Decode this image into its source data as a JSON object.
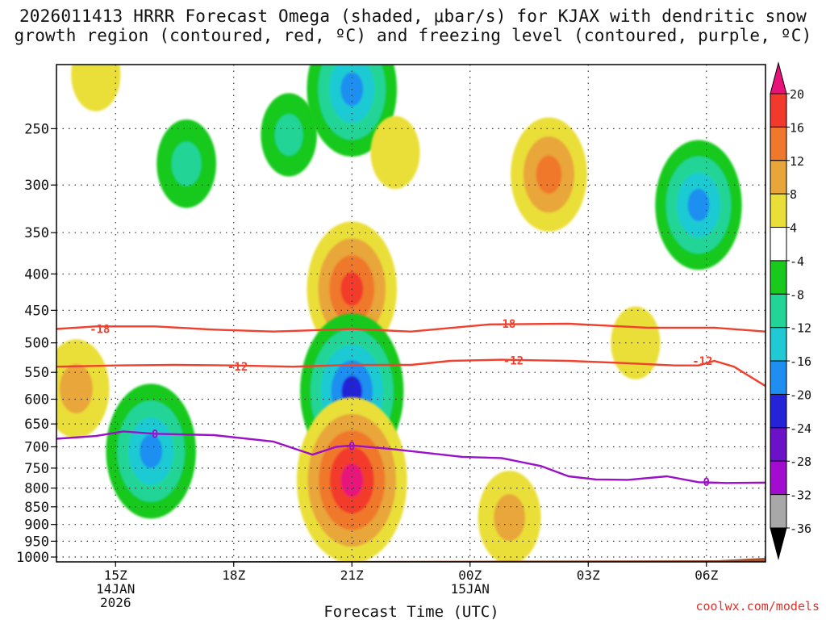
{
  "title": {
    "line1": "2026011413 HRRR Forecast Omega (shaded, μbar/s) for KJAX with dendritic snow",
    "line2": "growth region (contoured, red, ºC) and freezing level (contoured, purple, ºC)"
  },
  "credit": "coolwx.com/models",
  "chart_data": {
    "type": "contour",
    "title": "2026011413 HRRR Forecast Omega (shaded, μbar/s) for KJAX with dendritic snow growth region (contoured, red, ºC) and freezing level (contoured, purple, ºC)",
    "xlabel": "Forecast Time (UTC)",
    "ylabel": "",
    "xlim": [
      13.5,
      31.5
    ],
    "ylim": [
      1000,
      200
    ],
    "y_scale": "log-pressure (reversed)",
    "x_ticks": [
      {
        "h": 15,
        "labels": [
          "15Z",
          "14JAN",
          "2026"
        ]
      },
      {
        "h": 18,
        "labels": [
          "18Z"
        ]
      },
      {
        "h": 21,
        "labels": [
          "21Z"
        ]
      },
      {
        "h": 24,
        "labels": [
          "00Z",
          "15JAN"
        ]
      },
      {
        "h": 27,
        "labels": [
          "03Z"
        ]
      },
      {
        "h": 30,
        "labels": [
          "06Z"
        ]
      }
    ],
    "y_ticks": [
      250,
      300,
      350,
      400,
      450,
      500,
      550,
      600,
      650,
      700,
      750,
      800,
      850,
      900,
      950,
      1000
    ],
    "grid": true,
    "colorbar": {
      "labels": [
        "20",
        "16",
        "12",
        "8",
        "4",
        "-4",
        "-8",
        "-12",
        "-16",
        "-20",
        "-24",
        "-28",
        "-32",
        "-36"
      ],
      "label_values": [
        20,
        16,
        12,
        8,
        4,
        -4,
        -8,
        -12,
        -16,
        -20,
        -24,
        -28,
        -32,
        -36
      ],
      "bins": [
        {
          "range": "> 20",
          "color": "#e8127a"
        },
        {
          "range": "16 to 20",
          "color": "#f23a2c"
        },
        {
          "range": "12 to 16",
          "color": "#f0782c"
        },
        {
          "range": "8 to 12",
          "color": "#e8a63a"
        },
        {
          "range": "4 to 8",
          "color": "#eadf38"
        },
        {
          "range": "-4 to 4",
          "color": "#ffffff"
        },
        {
          "range": "-8 to -4",
          "color": "#19c91b"
        },
        {
          "range": "-12 to -8",
          "color": "#22d596"
        },
        {
          "range": "-16 to -12",
          "color": "#1fcad4"
        },
        {
          "range": "-20 to -16",
          "color": "#1e8ff0"
        },
        {
          "range": "-24 to -20",
          "color": "#2323d8"
        },
        {
          "range": "-28 to -24",
          "color": "#6b12c8"
        },
        {
          "range": "-32 to -28",
          "color": "#a20bd0"
        },
        {
          "range": "-36 to -32",
          "color": "#a8a8a8"
        },
        {
          "range": "< -36",
          "color": "#000000"
        }
      ]
    },
    "omega_features": [
      {
        "sign": "positive",
        "name": "upper-left",
        "center_h": 14.5,
        "center_p": 210,
        "peak": 6
      },
      {
        "sign": "negative",
        "name": "upper-green-column",
        "center_h": 16.8,
        "center_p": 280,
        "peak": -9
      },
      {
        "sign": "negative",
        "name": "upper-mid-blob",
        "center_h": 19.4,
        "center_p": 255,
        "peak": -8
      },
      {
        "sign": "negative",
        "name": "upper-cyan-column",
        "center_h": 21.0,
        "center_p": 220,
        "peak": -18
      },
      {
        "sign": "positive",
        "name": "upper-yellow-strip",
        "center_h": 22.1,
        "center_p": 270,
        "peak": 6
      },
      {
        "sign": "positive",
        "name": "mid-upper-warm",
        "center_h": 21.0,
        "center_p": 420,
        "peak": 18
      },
      {
        "sign": "negative",
        "name": "mid-cyan",
        "center_h": 21.0,
        "center_p": 585,
        "peak": -22
      },
      {
        "sign": "positive",
        "name": "low-core",
        "center_h": 21.0,
        "center_p": 780,
        "peak": 24
      },
      {
        "sign": "negative",
        "name": "lower-left-cell",
        "center_h": 15.9,
        "center_p": 710,
        "peak": -18
      },
      {
        "sign": "positive",
        "name": "left-column",
        "center_h": 14.0,
        "center_p": 580,
        "peak": 11
      },
      {
        "sign": "positive",
        "name": "upper-right-column",
        "center_h": 26.0,
        "center_p": 290,
        "peak": 14
      },
      {
        "sign": "positive",
        "name": "lower-right-broad",
        "center_h": 25.0,
        "center_p": 880,
        "peak": 10
      },
      {
        "sign": "negative",
        "name": "far-right-column",
        "center_h": 29.8,
        "center_p": 320,
        "peak": -17
      },
      {
        "sign": "positive",
        "name": "far-right-yellow",
        "center_h": 28.2,
        "center_p": 500,
        "peak": 6
      }
    ],
    "contours": [
      {
        "label": "-18",
        "color": "red",
        "quantity": "temperature",
        "points": [
          [
            13.5,
            478
          ],
          [
            14.5,
            474
          ],
          [
            16,
            474
          ],
          [
            17.5,
            479
          ],
          [
            19,
            482
          ],
          [
            21,
            478
          ],
          [
            22.5,
            482
          ],
          [
            24.5,
            471
          ],
          [
            26.5,
            470
          ],
          [
            28.5,
            476
          ],
          [
            30.2,
            476
          ],
          [
            31.5,
            482
          ]
        ],
        "label_positions": [
          [
            14.6,
            478
          ],
          [
            24.9,
            470
          ]
        ]
      },
      {
        "label": "-12",
        "color": "red",
        "quantity": "temperature",
        "points": [
          [
            13.5,
            540
          ],
          [
            15,
            538
          ],
          [
            16.5,
            537
          ],
          [
            18,
            538
          ],
          [
            19.5,
            540
          ],
          [
            21,
            537
          ],
          [
            22.5,
            537
          ],
          [
            23.5,
            530
          ],
          [
            24.8,
            528
          ],
          [
            26.5,
            530
          ],
          [
            28,
            534
          ],
          [
            29.2,
            538
          ],
          [
            29.8,
            538
          ],
          [
            30.2,
            530
          ],
          [
            30.7,
            540
          ],
          [
            31.5,
            575
          ]
        ],
        "label_positions": [
          [
            18.1,
            540
          ],
          [
            25.1,
            529
          ],
          [
            29.9,
            530
          ]
        ]
      },
      {
        "label": "0",
        "color": "purple",
        "quantity": "temperature (freezing level)",
        "points": [
          [
            13.5,
            682
          ],
          [
            14.5,
            676
          ],
          [
            15.2,
            666
          ],
          [
            16,
            671
          ],
          [
            17.5,
            674
          ],
          [
            19,
            688
          ],
          [
            20,
            718
          ],
          [
            20.6,
            700
          ],
          [
            21,
            697
          ],
          [
            22,
            705
          ],
          [
            23.8,
            723
          ],
          [
            24.8,
            726
          ],
          [
            25.8,
            745
          ],
          [
            26.5,
            770
          ],
          [
            27.2,
            778
          ],
          [
            28,
            779
          ],
          [
            29,
            770
          ],
          [
            29.8,
            785
          ],
          [
            30.5,
            787
          ],
          [
            31.5,
            786
          ]
        ],
        "label_positions": [
          [
            16.0,
            671
          ],
          [
            21.0,
            698
          ],
          [
            30.0,
            784
          ]
        ]
      }
    ],
    "terrain": {
      "surface_pressure": 1013,
      "color": "#a0522d"
    }
  }
}
